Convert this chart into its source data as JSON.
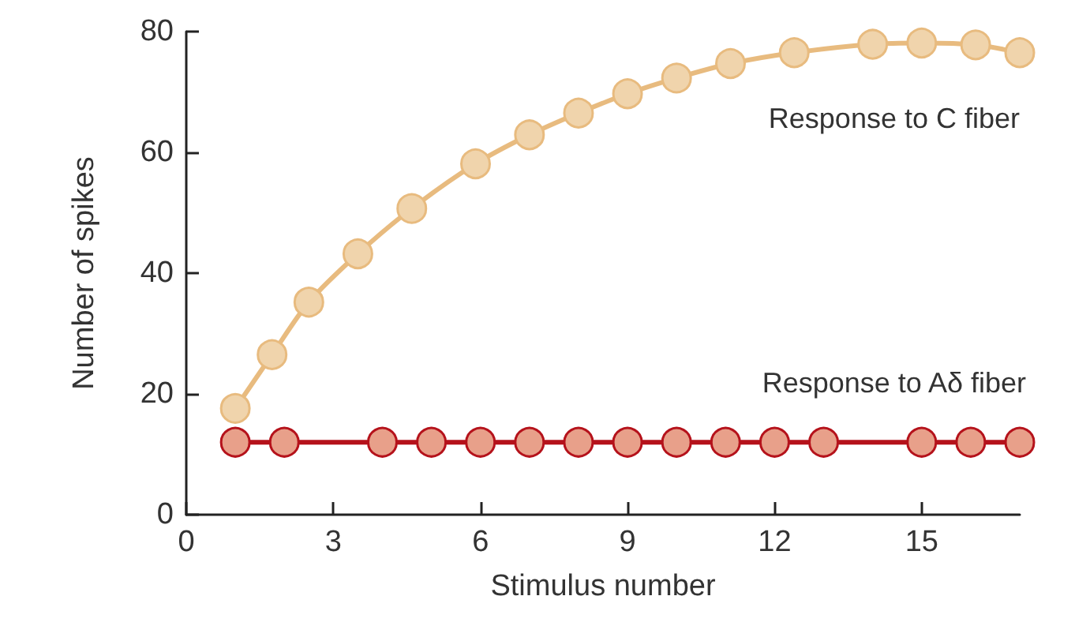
{
  "chart_data": {
    "type": "line",
    "xlabel": "Stimulus number",
    "ylabel": "Number of spikes",
    "xlim": [
      0,
      17
    ],
    "xticks": [
      0,
      3,
      6,
      9,
      12,
      15
    ],
    "ylim": [
      0,
      80
    ],
    "yticks": [
      0,
      20,
      40,
      60,
      80
    ],
    "grid": false,
    "legend": false,
    "marker": "circle",
    "line_style": "solid",
    "series": [
      {
        "name": "Response to C fiber",
        "color": "#e8bb7f",
        "x": [
          1,
          1.75,
          2.5,
          3.5,
          4.6,
          5.9,
          7,
          8,
          9,
          10,
          11.1,
          12.4,
          14,
          15,
          16.1,
          17
        ],
        "values": [
          17.6,
          26.5,
          35.2,
          43.2,
          50.7,
          58.1,
          62.9,
          66.5,
          69.7,
          72.3,
          74.7,
          76.5,
          77.9,
          78.1,
          77.8,
          76.5
        ]
      },
      {
        "name": "Response to Aδ fiber",
        "color": "#b5121b",
        "x": [
          1,
          2,
          4,
          5,
          6,
          7,
          8,
          9,
          10,
          11,
          12,
          13,
          15,
          16,
          17
        ],
        "values": [
          12,
          12,
          12,
          12,
          12,
          12,
          12,
          12,
          12,
          12,
          12,
          12,
          12,
          12,
          12
        ]
      }
    ]
  }
}
